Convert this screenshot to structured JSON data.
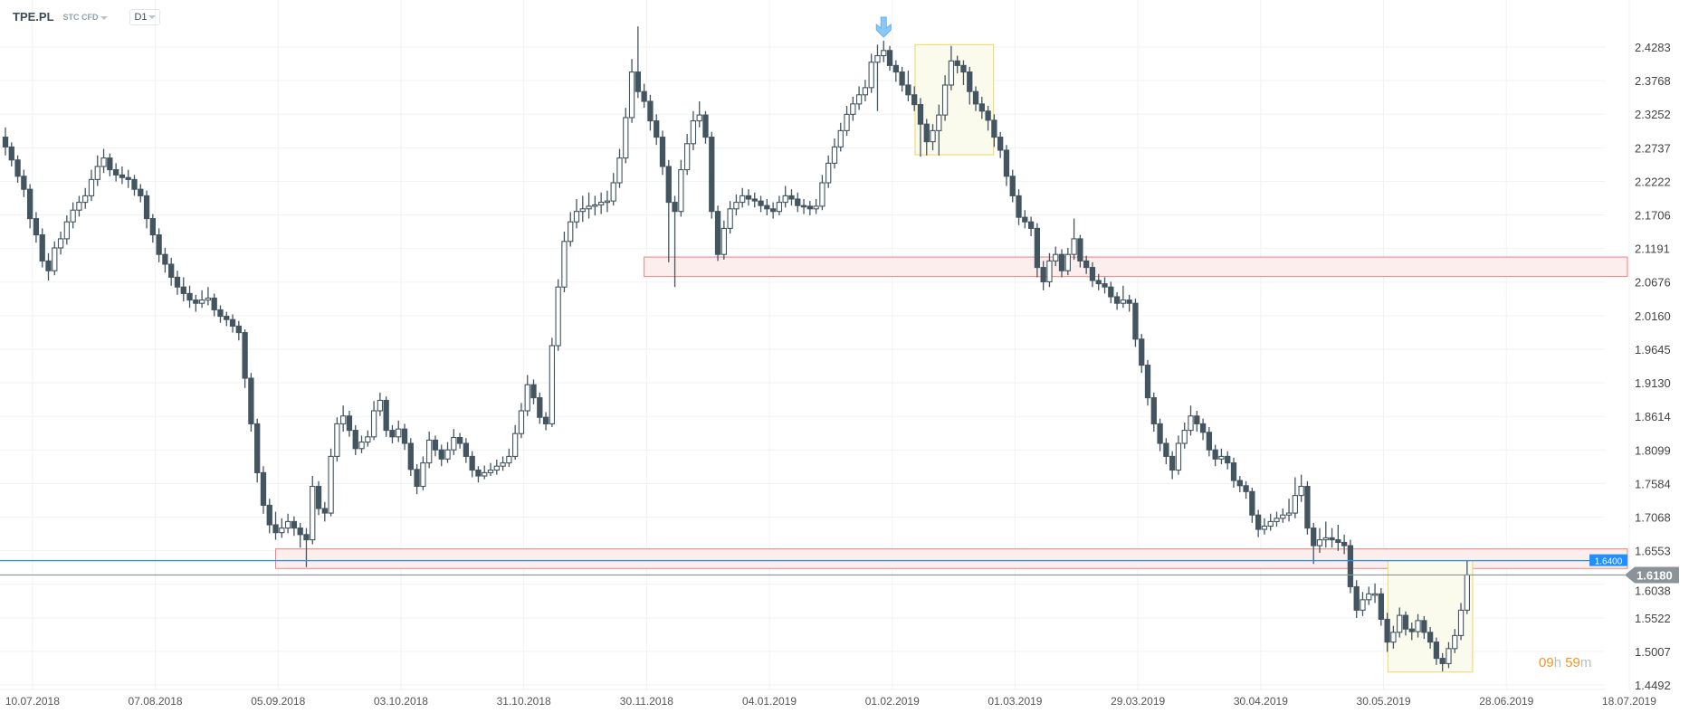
{
  "header": {
    "symbol": "TPE.PL",
    "instrument_type": "STC CFD",
    "timeframe": "D1"
  },
  "countdown": {
    "hours": "09",
    "hours_unit": "h",
    "minutes": "59",
    "minutes_unit": "m"
  },
  "colors": {
    "bear": "#435560",
    "bull_outline": "#435560",
    "zone_fill": "#fdeeee",
    "zone_line": "#f08080",
    "highlight_fill": "#fbfbed",
    "highlight_line": "#f0dc78",
    "level_line": "#1e90ff",
    "price_line": "#8a9498",
    "arrow": "#5ab2f5"
  },
  "chart_data": {
    "type": "candlestick",
    "title": "",
    "y_ticks": [
      "2.4283",
      "2.3768",
      "2.3252",
      "2.2737",
      "2.2222",
      "2.1706",
      "2.1191",
      "2.0676",
      "2.0160",
      "1.9645",
      "1.9130",
      "1.8614",
      "1.8099",
      "1.7584",
      "1.7068",
      "1.6553",
      "1.6038",
      "1.5522",
      "1.5007",
      "1.4492"
    ],
    "x_ticks": [
      "10.07.2018",
      "07.08.2018",
      "05.09.2018",
      "03.10.2018",
      "31.10.2018",
      "30.11.2018",
      "04.01.2019",
      "01.02.2019",
      "01.03.2019",
      "29.03.2019",
      "30.04.2019",
      "30.05.2019",
      "28.06.2019",
      "18.07.2019"
    ],
    "ylim": [
      1.4492,
      2.4283
    ],
    "grid": true,
    "current_price": "1.6180",
    "level_line": {
      "label": "1.6400",
      "value": 1.64
    },
    "zones": [
      {
        "from": 2.076,
        "to": 2.106
      },
      {
        "from": 1.628,
        "to": 1.658
      }
    ],
    "highlight_boxes": [
      {
        "first_candle": 149,
        "last_candle": 160,
        "low": 2.263,
        "high": 2.432
      },
      {
        "first_candle": 226,
        "last_candle": 238,
        "low": 1.469,
        "high": 1.64
      }
    ],
    "signal_arrow": {
      "direction": "down",
      "candle": 143
    },
    "candles_ohlc": [
      [
        2.29,
        2.305,
        2.262,
        2.275
      ],
      [
        2.275,
        2.282,
        2.245,
        2.255
      ],
      [
        2.255,
        2.262,
        2.22,
        2.23
      ],
      [
        2.23,
        2.24,
        2.198,
        2.21
      ],
      [
        2.21,
        2.218,
        2.15,
        2.165
      ],
      [
        2.165,
        2.175,
        2.128,
        2.14
      ],
      [
        2.14,
        2.15,
        2.09,
        2.1
      ],
      [
        2.1,
        2.112,
        2.07,
        2.085
      ],
      [
        2.085,
        2.13,
        2.078,
        2.12
      ],
      [
        2.12,
        2.145,
        2.11,
        2.134
      ],
      [
        2.134,
        2.17,
        2.125,
        2.16
      ],
      [
        2.16,
        2.19,
        2.15,
        2.178
      ],
      [
        2.178,
        2.2,
        2.168,
        2.19
      ],
      [
        2.19,
        2.212,
        2.18,
        2.2
      ],
      [
        2.2,
        2.24,
        2.192,
        2.225
      ],
      [
        2.225,
        2.262,
        2.215,
        2.245
      ],
      [
        2.245,
        2.272,
        2.235,
        2.258
      ],
      [
        2.258,
        2.265,
        2.23,
        2.24
      ],
      [
        2.24,
        2.25,
        2.222,
        2.232
      ],
      [
        2.232,
        2.245,
        2.218,
        2.228
      ],
      [
        2.228,
        2.24,
        2.212,
        2.225
      ],
      [
        2.225,
        2.232,
        2.2,
        2.21
      ],
      [
        2.21,
        2.218,
        2.19,
        2.2
      ],
      [
        2.2,
        2.208,
        2.15,
        2.165
      ],
      [
        2.165,
        2.172,
        2.128,
        2.14
      ],
      [
        2.14,
        2.15,
        2.098,
        2.11
      ],
      [
        2.11,
        2.12,
        2.082,
        2.095
      ],
      [
        2.095,
        2.105,
        2.062,
        2.075
      ],
      [
        2.075,
        2.085,
        2.048,
        2.06
      ],
      [
        2.06,
        2.075,
        2.038,
        2.05
      ],
      [
        2.05,
        2.062,
        2.028,
        2.04
      ],
      [
        2.04,
        2.048,
        2.022,
        2.035
      ],
      [
        2.035,
        2.055,
        2.028,
        2.04
      ],
      [
        2.04,
        2.06,
        2.032,
        2.043
      ],
      [
        2.043,
        2.05,
        2.015,
        2.025
      ],
      [
        2.025,
        2.032,
        2.005,
        2.015
      ],
      [
        2.015,
        2.022,
        2.0,
        2.01
      ],
      [
        2.01,
        2.018,
        1.99,
        2.0
      ],
      [
        2.0,
        2.008,
        1.978,
        1.99
      ],
      [
        1.99,
        1.995,
        1.905,
        1.92
      ],
      [
        1.92,
        1.928,
        1.838,
        1.85
      ],
      [
        1.85,
        1.858,
        1.76,
        1.775
      ],
      [
        1.775,
        1.785,
        1.712,
        1.725
      ],
      [
        1.725,
        1.735,
        1.682,
        1.695
      ],
      [
        1.695,
        1.715,
        1.672,
        1.683
      ],
      [
        1.683,
        1.705,
        1.675,
        1.69
      ],
      [
        1.69,
        1.712,
        1.682,
        1.7
      ],
      [
        1.7,
        1.708,
        1.678,
        1.69
      ],
      [
        1.69,
        1.698,
        1.66,
        1.68
      ],
      [
        1.68,
        1.69,
        1.63,
        1.672
      ],
      [
        1.672,
        1.77,
        1.665,
        1.754
      ],
      [
        1.754,
        1.762,
        1.71,
        1.72
      ],
      [
        1.72,
        1.73,
        1.7,
        1.713
      ],
      [
        1.713,
        1.812,
        1.708,
        1.8
      ],
      [
        1.8,
        1.86,
        1.792,
        1.85
      ],
      [
        1.85,
        1.878,
        1.838,
        1.862
      ],
      [
        1.862,
        1.87,
        1.83,
        1.84
      ],
      [
        1.84,
        1.848,
        1.802,
        1.812
      ],
      [
        1.812,
        1.832,
        1.805,
        1.822
      ],
      [
        1.822,
        1.84,
        1.815,
        1.83
      ],
      [
        1.83,
        1.885,
        1.825,
        1.87
      ],
      [
        1.87,
        1.898,
        1.862,
        1.886
      ],
      [
        1.886,
        1.892,
        1.83,
        1.84
      ],
      [
        1.84,
        1.848,
        1.82,
        1.83
      ],
      [
        1.83,
        1.855,
        1.822,
        1.842
      ],
      [
        1.842,
        1.85,
        1.81,
        1.82
      ],
      [
        1.82,
        1.828,
        1.77,
        1.78
      ],
      [
        1.78,
        1.788,
        1.742,
        1.754
      ],
      [
        1.754,
        1.8,
        1.748,
        1.79
      ],
      [
        1.79,
        1.838,
        1.782,
        1.825
      ],
      [
        1.825,
        1.832,
        1.8,
        1.81
      ],
      [
        1.81,
        1.818,
        1.785,
        1.796
      ],
      [
        1.796,
        1.822,
        1.79,
        1.81
      ],
      [
        1.81,
        1.842,
        1.802,
        1.829
      ],
      [
        1.829,
        1.836,
        1.812,
        1.82
      ],
      [
        1.82,
        1.828,
        1.79,
        1.8
      ],
      [
        1.8,
        1.808,
        1.768,
        1.779
      ],
      [
        1.779,
        1.785,
        1.76,
        1.77
      ],
      [
        1.77,
        1.786,
        1.765,
        1.775
      ],
      [
        1.775,
        1.79,
        1.77,
        1.779
      ],
      [
        1.779,
        1.795,
        1.772,
        1.785
      ],
      [
        1.785,
        1.8,
        1.778,
        1.79
      ],
      [
        1.79,
        1.812,
        1.784,
        1.8
      ],
      [
        1.8,
        1.848,
        1.795,
        1.835
      ],
      [
        1.835,
        1.882,
        1.828,
        1.87
      ],
      [
        1.87,
        1.925,
        1.862,
        1.91
      ],
      [
        1.91,
        1.918,
        1.88,
        1.89
      ],
      [
        1.89,
        1.898,
        1.85,
        1.86
      ],
      [
        1.86,
        1.868,
        1.84,
        1.85
      ],
      [
        1.85,
        1.982,
        1.845,
        1.97
      ],
      [
        1.97,
        2.072,
        1.962,
        2.06
      ],
      [
        2.06,
        2.145,
        2.052,
        2.13
      ],
      [
        2.13,
        2.175,
        2.122,
        2.16
      ],
      [
        2.16,
        2.195,
        2.15,
        2.176
      ],
      [
        2.176,
        2.2,
        2.16,
        2.18
      ],
      [
        2.18,
        2.205,
        2.165,
        2.184
      ],
      [
        2.184,
        2.2,
        2.17,
        2.186
      ],
      [
        2.186,
        2.205,
        2.172,
        2.19
      ],
      [
        2.19,
        2.208,
        2.175,
        2.192
      ],
      [
        2.192,
        2.235,
        2.185,
        2.22
      ],
      [
        2.22,
        2.272,
        2.212,
        2.258
      ],
      [
        2.258,
        2.335,
        2.25,
        2.32
      ],
      [
        2.32,
        2.41,
        2.312,
        2.39
      ],
      [
        2.39,
        2.46,
        2.35,
        2.36
      ],
      [
        2.36,
        2.372,
        2.335,
        2.345
      ],
      [
        2.345,
        2.355,
        2.3,
        2.315
      ],
      [
        2.315,
        2.325,
        2.278,
        2.29
      ],
      [
        2.29,
        2.3,
        2.232,
        2.245
      ],
      [
        2.245,
        2.255,
        2.098,
        2.19
      ],
      [
        2.19,
        2.2,
        2.06,
        2.176
      ],
      [
        2.176,
        2.255,
        2.168,
        2.24
      ],
      [
        2.24,
        2.295,
        2.232,
        2.28
      ],
      [
        2.28,
        2.33,
        2.27,
        2.315
      ],
      [
        2.315,
        2.345,
        2.305,
        2.324
      ],
      [
        2.324,
        2.33,
        2.28,
        2.29
      ],
      [
        2.29,
        2.298,
        2.165,
        2.176
      ],
      [
        2.176,
        2.185,
        2.1,
        2.11
      ],
      [
        2.11,
        2.162,
        2.102,
        2.15
      ],
      [
        2.15,
        2.192,
        2.142,
        2.18
      ],
      [
        2.18,
        2.202,
        2.17,
        2.19
      ],
      [
        2.19,
        2.212,
        2.182,
        2.2
      ],
      [
        2.2,
        2.21,
        2.185,
        2.195
      ],
      [
        2.195,
        2.205,
        2.182,
        2.192
      ],
      [
        2.192,
        2.2,
        2.175,
        2.185
      ],
      [
        2.185,
        2.195,
        2.17,
        2.18
      ],
      [
        2.18,
        2.19,
        2.165,
        2.176
      ],
      [
        2.176,
        2.2,
        2.17,
        2.19
      ],
      [
        2.19,
        2.215,
        2.182,
        2.2
      ],
      [
        2.2,
        2.21,
        2.185,
        2.195
      ],
      [
        2.195,
        2.205,
        2.175,
        2.185
      ],
      [
        2.185,
        2.195,
        2.172,
        2.184
      ],
      [
        2.184,
        2.192,
        2.17,
        2.18
      ],
      [
        2.18,
        2.195,
        2.172,
        2.184
      ],
      [
        2.184,
        2.232,
        2.178,
        2.22
      ],
      [
        2.22,
        2.262,
        2.212,
        2.25
      ],
      [
        2.25,
        2.288,
        2.242,
        2.275
      ],
      [
        2.275,
        2.312,
        2.268,
        2.3
      ],
      [
        2.3,
        2.338,
        2.292,
        2.325
      ],
      [
        2.325,
        2.352,
        2.315,
        2.341
      ],
      [
        2.341,
        2.368,
        2.332,
        2.355
      ],
      [
        2.355,
        2.378,
        2.345,
        2.366
      ],
      [
        2.366,
        2.418,
        2.358,
        2.405
      ],
      [
        2.405,
        2.432,
        2.33,
        2.415
      ],
      [
        2.415,
        2.438,
        2.405,
        2.423
      ],
      [
        2.423,
        2.43,
        2.392,
        2.4
      ],
      [
        2.4,
        2.408,
        2.375,
        2.39
      ],
      [
        2.39,
        2.398,
        2.36,
        2.37
      ],
      [
        2.37,
        2.392,
        2.345,
        2.355
      ],
      [
        2.355,
        2.368,
        2.33,
        2.34
      ],
      [
        2.34,
        2.35,
        2.26,
        2.31
      ],
      [
        2.31,
        2.318,
        2.262,
        2.283
      ],
      [
        2.283,
        2.31,
        2.27,
        2.3
      ],
      [
        2.3,
        2.34,
        2.262,
        2.324
      ],
      [
        2.324,
        2.385,
        2.315,
        2.37
      ],
      [
        2.37,
        2.43,
        2.362,
        2.407
      ],
      [
        2.407,
        2.415,
        2.388,
        2.4
      ],
      [
        2.4,
        2.408,
        2.37,
        2.39
      ],
      [
        2.39,
        2.398,
        2.34,
        2.36
      ],
      [
        2.36,
        2.368,
        2.33,
        2.341
      ],
      [
        2.341,
        2.352,
        2.318,
        2.33
      ],
      [
        2.33,
        2.338,
        2.3,
        2.316
      ],
      [
        2.316,
        2.325,
        2.275,
        2.29
      ],
      [
        2.29,
        2.298,
        2.258,
        2.27
      ],
      [
        2.27,
        2.278,
        2.215,
        2.23
      ],
      [
        2.23,
        2.24,
        2.19,
        2.2
      ],
      [
        2.2,
        2.21,
        2.155,
        2.167
      ],
      [
        2.167,
        2.178,
        2.15,
        2.16
      ],
      [
        2.16,
        2.168,
        2.138,
        2.15
      ],
      [
        2.15,
        2.158,
        2.075,
        2.09
      ],
      [
        2.09,
        2.1,
        2.055,
        2.068
      ],
      [
        2.068,
        2.112,
        2.06,
        2.1
      ],
      [
        2.1,
        2.122,
        2.092,
        2.11
      ],
      [
        2.11,
        2.118,
        2.075,
        2.085
      ],
      [
        2.085,
        2.12,
        2.078,
        2.11
      ],
      [
        2.11,
        2.165,
        2.102,
        2.134
      ],
      [
        2.134,
        2.14,
        2.09,
        2.1
      ],
      [
        2.1,
        2.108,
        2.08,
        2.09
      ],
      [
        2.09,
        2.098,
        2.06,
        2.07
      ],
      [
        2.07,
        2.08,
        2.055,
        2.065
      ],
      [
        2.065,
        2.075,
        2.05,
        2.06
      ],
      [
        2.06,
        2.068,
        2.035,
        2.045
      ],
      [
        2.045,
        2.052,
        2.025,
        2.035
      ],
      [
        2.035,
        2.062,
        2.028,
        2.04
      ],
      [
        2.04,
        2.048,
        2.022,
        2.035
      ],
      [
        2.035,
        2.042,
        1.968,
        1.98
      ],
      [
        1.98,
        1.988,
        1.928,
        1.94
      ],
      [
        1.94,
        1.948,
        1.878,
        1.89
      ],
      [
        1.89,
        1.898,
        1.838,
        1.85
      ],
      [
        1.85,
        1.858,
        1.808,
        1.82
      ],
      [
        1.82,
        1.828,
        1.788,
        1.8
      ],
      [
        1.8,
        1.808,
        1.765,
        1.779
      ],
      [
        1.779,
        1.832,
        1.772,
        1.82
      ],
      [
        1.82,
        1.852,
        1.812,
        1.84
      ],
      [
        1.84,
        1.878,
        1.832,
        1.862
      ],
      [
        1.862,
        1.87,
        1.838,
        1.85
      ],
      [
        1.85,
        1.858,
        1.825,
        1.837
      ],
      [
        1.837,
        1.845,
        1.8,
        1.81
      ],
      [
        1.81,
        1.818,
        1.785,
        1.796
      ],
      [
        1.796,
        1.812,
        1.788,
        1.8
      ],
      [
        1.8,
        1.808,
        1.78,
        1.79
      ],
      [
        1.79,
        1.798,
        1.752,
        1.763
      ],
      [
        1.763,
        1.77,
        1.745,
        1.755
      ],
      [
        1.755,
        1.762,
        1.735,
        1.746
      ],
      [
        1.746,
        1.752,
        1.698,
        1.71
      ],
      [
        1.71,
        1.718,
        1.676,
        1.688
      ],
      [
        1.688,
        1.705,
        1.68,
        1.693
      ],
      [
        1.693,
        1.712,
        1.686,
        1.7
      ],
      [
        1.7,
        1.715,
        1.692,
        1.705
      ],
      [
        1.705,
        1.72,
        1.698,
        1.71
      ],
      [
        1.71,
        1.735,
        1.7,
        1.713
      ],
      [
        1.713,
        1.768,
        1.705,
        1.74
      ],
      [
        1.74,
        1.772,
        1.73,
        1.754
      ],
      [
        1.754,
        1.762,
        1.68,
        1.69
      ],
      [
        1.69,
        1.698,
        1.635,
        1.663
      ],
      [
        1.663,
        1.69,
        1.652,
        1.672
      ],
      [
        1.672,
        1.7,
        1.66,
        1.675
      ],
      [
        1.675,
        1.69,
        1.66,
        1.672
      ],
      [
        1.672,
        1.695,
        1.655,
        1.668
      ],
      [
        1.668,
        1.68,
        1.65,
        1.663
      ],
      [
        1.663,
        1.672,
        1.59,
        1.6
      ],
      [
        1.6,
        1.61,
        1.552,
        1.564
      ],
      [
        1.564,
        1.592,
        1.555,
        1.58
      ],
      [
        1.58,
        1.6,
        1.572,
        1.589
      ],
      [
        1.589,
        1.605,
        1.575,
        1.589
      ],
      [
        1.589,
        1.598,
        1.54,
        1.55
      ],
      [
        1.55,
        1.56,
        1.5,
        1.515
      ],
      [
        1.515,
        1.54,
        1.505,
        1.53
      ],
      [
        1.53,
        1.568,
        1.522,
        1.556
      ],
      [
        1.556,
        1.562,
        1.525,
        1.535
      ],
      [
        1.535,
        1.545,
        1.518,
        1.531
      ],
      [
        1.531,
        1.558,
        1.522,
        1.548
      ],
      [
        1.548,
        1.555,
        1.52,
        1.53
      ],
      [
        1.53,
        1.538,
        1.505,
        1.515
      ],
      [
        1.515,
        1.522,
        1.48,
        1.49
      ],
      [
        1.49,
        1.498,
        1.47,
        1.482
      ],
      [
        1.482,
        1.515,
        1.475,
        1.505
      ],
      [
        1.505,
        1.535,
        1.498,
        1.525
      ],
      [
        1.525,
        1.575,
        1.518,
        1.564
      ],
      [
        1.564,
        1.64,
        1.558,
        1.618
      ]
    ]
  }
}
